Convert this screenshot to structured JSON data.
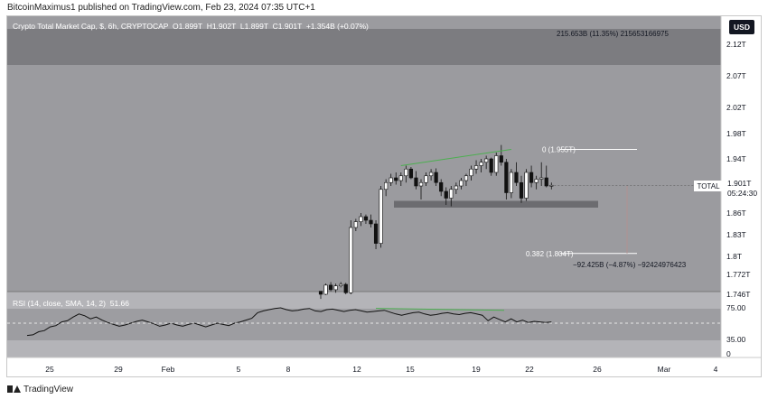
{
  "header": {
    "publish_line": "BitcoinMaximus1 published on TradingView.com, Feb 23, 2024 07:35 UTC+1"
  },
  "footer": {
    "brand": "TradingView"
  },
  "toolbar": {
    "currency": "USD"
  },
  "chart_data": {
    "type": "candlestick",
    "title": "Crypto Total Market Cap, $, 6h, CRYPTOCAP",
    "ohlc": {
      "o_label": "O",
      "o": "1.899T",
      "h_label": "H",
      "h": "1.902T",
      "l_label": "L",
      "l": "1.899T",
      "c_label": "C",
      "c": "1.901T",
      "change": "+1.354B (+0.07%)"
    },
    "price_axis_ticks": [
      "2.12T",
      "2.07T",
      "2.02T",
      "1.98T",
      "1.94T",
      "1.86T",
      "1.83T",
      "1.8T",
      "1.772T",
      "1.746T"
    ],
    "last_price": {
      "symbol": "TOTAL",
      "price": "1.901T",
      "countdown": "05:24:30"
    },
    "time_axis_ticks": [
      "25",
      "29",
      "Feb",
      "5",
      "8",
      "12",
      "15",
      "19",
      "22",
      "26",
      "Mar",
      "4"
    ],
    "measure_top_text": "215.653B (11.35%) 215653166975",
    "fib_levels": [
      {
        "label": "0 (1.955T)",
        "price": 1.955
      },
      {
        "label": "0.382 (1.804T)",
        "price": 1.804
      }
    ],
    "measure_bottom_text": "−92.425B (−4.87%) −92424976423",
    "support_zone": [
      1.868,
      1.878
    ],
    "candles_recent": [
      [
        1.75,
        1.75,
        1.74,
        1.746
      ],
      [
        1.746,
        1.76,
        1.745,
        1.758
      ],
      [
        1.758,
        1.762,
        1.75,
        1.752
      ],
      [
        1.752,
        1.76,
        1.748,
        1.757
      ],
      [
        1.757,
        1.762,
        1.755,
        1.759
      ],
      [
        1.759,
        1.761,
        1.746,
        1.748
      ],
      [
        1.748,
        1.85,
        1.746,
        1.84
      ],
      [
        1.84,
        1.852,
        1.835,
        1.848
      ],
      [
        1.848,
        1.86,
        1.842,
        1.855
      ],
      [
        1.855,
        1.858,
        1.845,
        1.85
      ],
      [
        1.85,
        1.858,
        1.84,
        1.845
      ],
      [
        1.845,
        1.85,
        1.81,
        1.818
      ],
      [
        1.818,
        1.9,
        1.812,
        1.895
      ],
      [
        1.895,
        1.91,
        1.885,
        1.905
      ],
      [
        1.905,
        1.918,
        1.9,
        1.912
      ],
      [
        1.912,
        1.92,
        1.902,
        1.908
      ],
      [
        1.908,
        1.92,
        1.9,
        1.915
      ],
      [
        1.915,
        1.93,
        1.905,
        1.925
      ],
      [
        1.925,
        1.928,
        1.91,
        1.912
      ],
      [
        1.912,
        1.922,
        1.895,
        1.9
      ],
      [
        1.9,
        1.91,
        1.88,
        1.905
      ],
      [
        1.905,
        1.92,
        1.9,
        1.915
      ],
      [
        1.915,
        1.925,
        1.908,
        1.92
      ],
      [
        1.92,
        1.926,
        1.9,
        1.905
      ],
      [
        1.905,
        1.91,
        1.885,
        1.892
      ],
      [
        1.892,
        1.898,
        1.872,
        1.882
      ],
      [
        1.882,
        1.9,
        1.87,
        1.895
      ],
      [
        1.895,
        1.905,
        1.888,
        1.9
      ],
      [
        1.9,
        1.912,
        1.895,
        1.908
      ],
      [
        1.908,
        1.918,
        1.9,
        1.915
      ],
      [
        1.915,
        1.93,
        1.908,
        1.925
      ],
      [
        1.925,
        1.938,
        1.918,
        1.93
      ],
      [
        1.93,
        1.94,
        1.92,
        1.935
      ],
      [
        1.935,
        1.945,
        1.925,
        1.94
      ],
      [
        1.94,
        1.942,
        1.915,
        1.92
      ],
      [
        1.92,
        1.95,
        1.915,
        1.945
      ],
      [
        1.945,
        1.962,
        1.93,
        1.935
      ],
      [
        1.935,
        1.94,
        1.88,
        1.89
      ],
      [
        1.89,
        1.925,
        1.882,
        1.92
      ],
      [
        1.92,
        1.935,
        1.9,
        1.905
      ],
      [
        1.905,
        1.915,
        1.875,
        1.882
      ],
      [
        1.882,
        1.925,
        1.878,
        1.92
      ],
      [
        1.92,
        1.93,
        1.898,
        1.905
      ],
      [
        1.905,
        1.915,
        1.895,
        1.91
      ],
      [
        1.91,
        1.935,
        1.9,
        1.912
      ],
      [
        1.912,
        1.93,
        1.898,
        1.9
      ],
      [
        1.9,
        1.905,
        1.895,
        1.901
      ]
    ],
    "rsi": {
      "label": "RSI (14, close, SMA, 14, 2)",
      "value_label": "51.66",
      "axis_ticks": [
        "75.00",
        "35.00",
        "0"
      ],
      "values": [
        30,
        31,
        36,
        38,
        44,
        46,
        52,
        54,
        60,
        65,
        62,
        57,
        60,
        55,
        51,
        48,
        45,
        47,
        50,
        53,
        55,
        52,
        49,
        45,
        47,
        50,
        47,
        45,
        48,
        50,
        47,
        44,
        47,
        50,
        48,
        46,
        50,
        52,
        55,
        58,
        67,
        70,
        72,
        74,
        75,
        72,
        70,
        71,
        73,
        74,
        70,
        69,
        72,
        73,
        71,
        69,
        71,
        72,
        70,
        68,
        69,
        70,
        71,
        68,
        65,
        63,
        65,
        67,
        68,
        65,
        63,
        64,
        66,
        67,
        65,
        64,
        66,
        67,
        65,
        63,
        54,
        60,
        56,
        52,
        57,
        52,
        55,
        51,
        53,
        52,
        51,
        52
      ]
    }
  }
}
